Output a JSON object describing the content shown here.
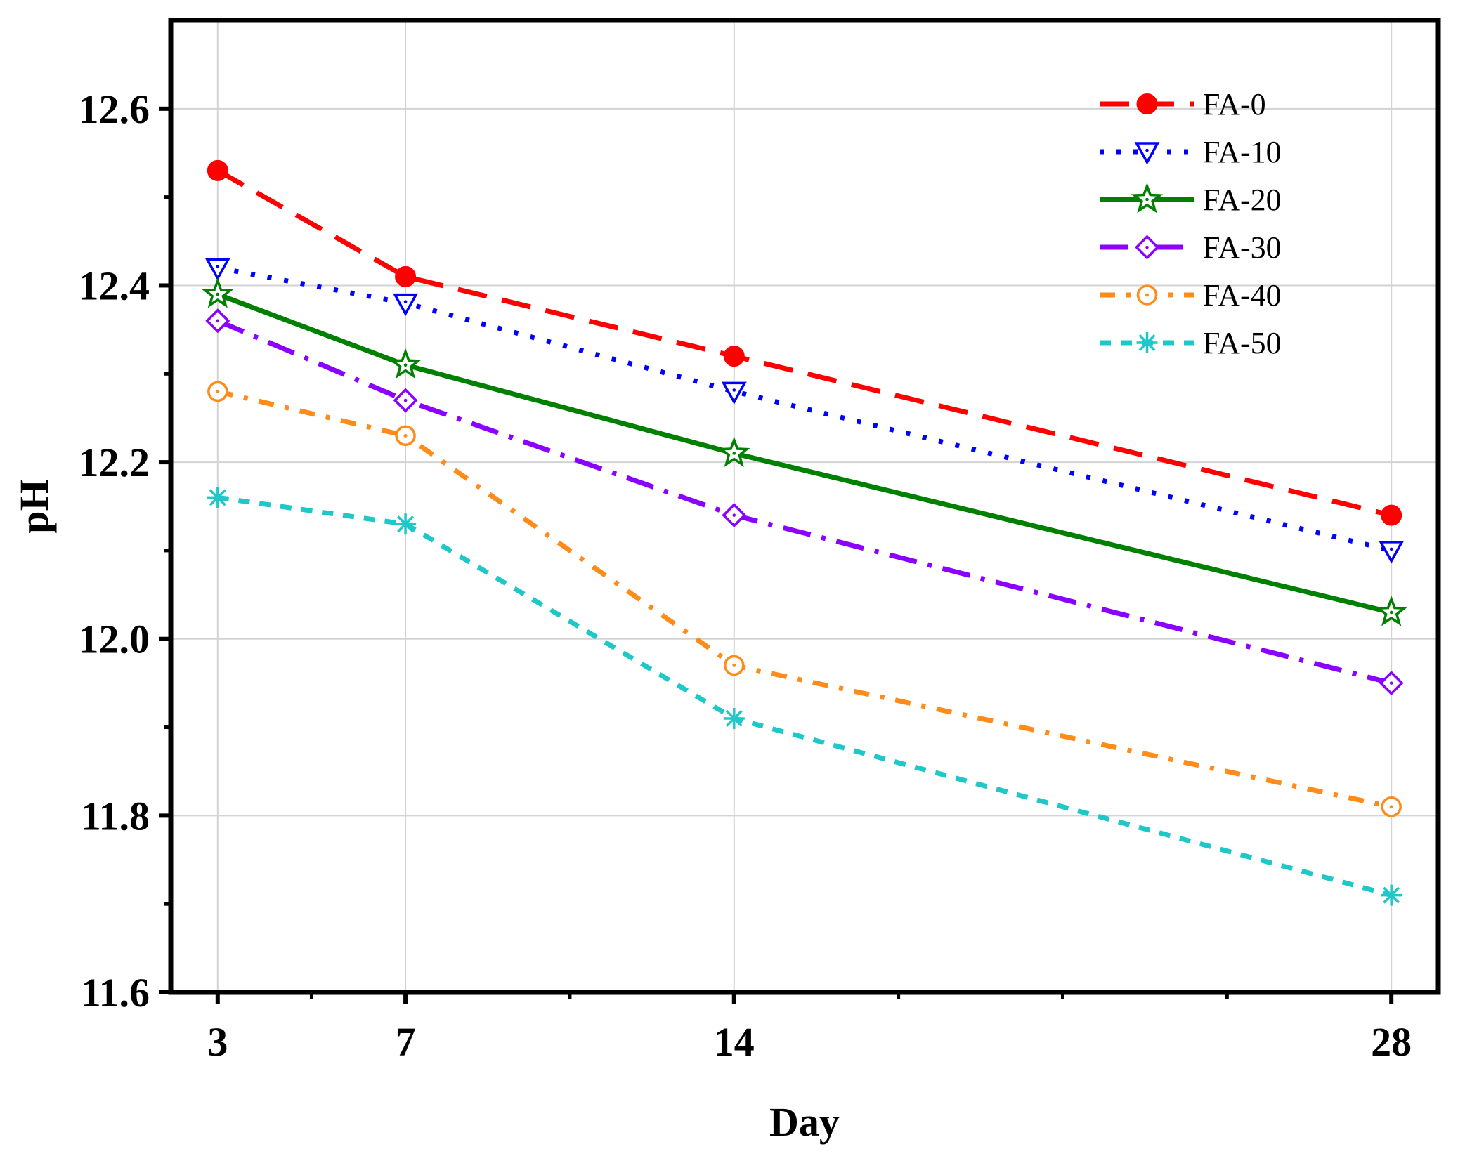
{
  "chart_data": {
    "type": "line",
    "xlabel": "Day",
    "ylabel": "pH",
    "x": [
      3,
      7,
      14,
      28
    ],
    "x_tick_labels": [
      "3",
      "7",
      "14",
      "28"
    ],
    "xlim": [
      2,
      29
    ],
    "ylim": [
      11.6,
      12.7
    ],
    "y_ticks": [
      11.6,
      11.8,
      12.0,
      12.2,
      12.4,
      12.6
    ],
    "y_tick_labels": [
      "11.6",
      "11.8",
      "12.0",
      "12.2",
      "12.4",
      "12.6"
    ],
    "grid": true,
    "legend_position": "top-right",
    "series": [
      {
        "name": "FA-0",
        "values": [
          12.53,
          12.41,
          12.32,
          12.14
        ],
        "color": "#ff0000",
        "marker": "circle-filled",
        "line_style": "dash"
      },
      {
        "name": "FA-10",
        "values": [
          12.42,
          12.38,
          12.28,
          12.1
        ],
        "color": "#0000ff",
        "marker": "triangle-down",
        "line_style": "dot"
      },
      {
        "name": "FA-20",
        "values": [
          12.39,
          12.31,
          12.21,
          12.03
        ],
        "color": "#008000",
        "marker": "star",
        "line_style": "solid"
      },
      {
        "name": "FA-30",
        "values": [
          12.36,
          12.27,
          12.14,
          11.95
        ],
        "color": "#8b00ff",
        "marker": "diamond",
        "line_style": "dash-dot"
      },
      {
        "name": "FA-40",
        "values": [
          12.28,
          12.23,
          11.97,
          11.81
        ],
        "color": "#ff8c1a",
        "marker": "circle-open",
        "line_style": "dash-dot-short"
      },
      {
        "name": "FA-50",
        "values": [
          12.16,
          12.13,
          11.91,
          11.71
        ],
        "color": "#1ec8c8",
        "marker": "asterisk",
        "line_style": "short-dash"
      }
    ]
  }
}
